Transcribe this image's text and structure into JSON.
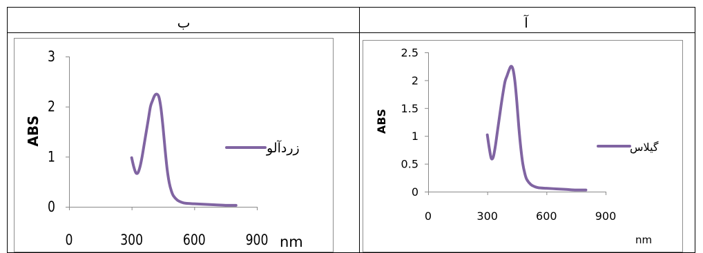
{
  "chart_data": [
    {
      "panel_label": "ب",
      "type": "line",
      "title": "",
      "xlabel": "nm",
      "ylabel": "ABS",
      "xlim": [
        0,
        900
      ],
      "ylim": [
        0,
        3
      ],
      "x_ticks": [
        "0",
        "300",
        "600",
        "900"
      ],
      "y_ticks": [
        "0",
        "1",
        "2",
        "3"
      ],
      "grid": false,
      "legend_position": "right",
      "series": [
        {
          "name": "زردآلو",
          "color": "#8064A2",
          "x": [
            300,
            310,
            320,
            330,
            340,
            350,
            360,
            370,
            380,
            390,
            400,
            410,
            420,
            430,
            440,
            450,
            460,
            470,
            480,
            490,
            500,
            520,
            540,
            560,
            600,
            650,
            700,
            750,
            800
          ],
          "y": [
            0.98,
            0.8,
            0.68,
            0.68,
            0.8,
            1.0,
            1.25,
            1.5,
            1.75,
            2.0,
            2.12,
            2.22,
            2.25,
            2.2,
            1.98,
            1.6,
            1.15,
            0.75,
            0.48,
            0.32,
            0.22,
            0.13,
            0.09,
            0.07,
            0.06,
            0.05,
            0.04,
            0.03,
            0.03
          ]
        }
      ]
    },
    {
      "panel_label": "آ",
      "type": "line",
      "title": "",
      "xlabel": "nm",
      "ylabel": "ABS",
      "xlim": [
        0,
        900
      ],
      "ylim": [
        0,
        2.5
      ],
      "x_ticks": [
        "0",
        "300",
        "600",
        "900"
      ],
      "y_ticks": [
        "0",
        "0.5",
        "1",
        "1.5",
        "2",
        "2.5"
      ],
      "grid": false,
      "legend_position": "right",
      "series": [
        {
          "name": "گیلاس",
          "color": "#8064A2",
          "x": [
            300,
            310,
            320,
            330,
            340,
            350,
            360,
            370,
            380,
            390,
            400,
            410,
            420,
            430,
            440,
            450,
            460,
            470,
            480,
            490,
            500,
            520,
            540,
            560,
            600,
            650,
            700,
            750,
            800
          ],
          "y": [
            1.02,
            0.78,
            0.6,
            0.62,
            0.8,
            1.05,
            1.3,
            1.55,
            1.78,
            1.98,
            2.08,
            2.18,
            2.25,
            2.2,
            1.98,
            1.6,
            1.15,
            0.78,
            0.5,
            0.33,
            0.22,
            0.13,
            0.09,
            0.07,
            0.06,
            0.05,
            0.04,
            0.03,
            0.03
          ]
        }
      ]
    }
  ]
}
